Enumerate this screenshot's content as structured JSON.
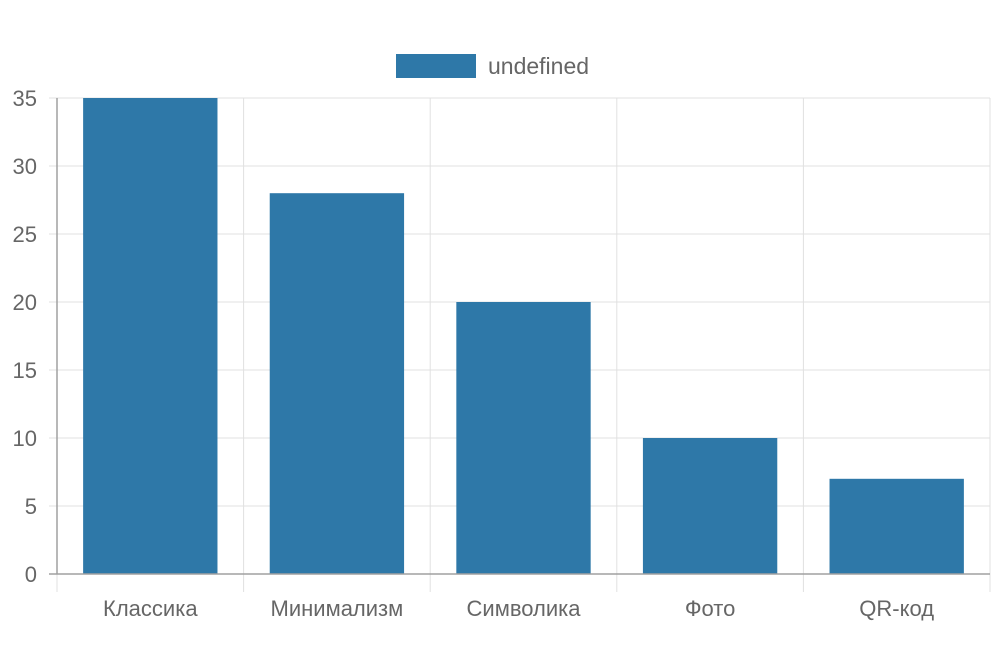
{
  "chart_data": {
    "type": "bar",
    "categories": [
      "Классика",
      "Минимализм",
      "Символика",
      "Фото",
      "QR-код"
    ],
    "series": [
      {
        "name": "undefined",
        "values": [
          35,
          28,
          20,
          10,
          7
        ]
      }
    ],
    "ylim": [
      0,
      35
    ],
    "yticks": [
      0,
      5,
      10,
      15,
      20,
      25,
      30,
      35
    ],
    "grid": true,
    "legend_position": "top-center",
    "colors": {
      "bar": "#2e78a8",
      "grid": "#e0e0e0",
      "axis": "#a0a0a0",
      "text": "#666666"
    }
  }
}
